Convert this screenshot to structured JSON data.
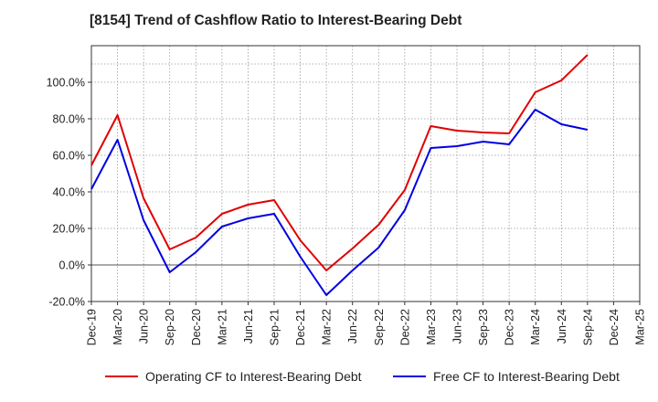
{
  "chart_data": {
    "type": "line",
    "title": "[8154]  Trend of Cashflow Ratio to Interest-Bearing Debt",
    "xlabel": "",
    "ylabel": "",
    "x": [
      "Dec-19",
      "Mar-20",
      "Jun-20",
      "Sep-20",
      "Dec-20",
      "Mar-21",
      "Jun-21",
      "Sep-21",
      "Dec-21",
      "Mar-22",
      "Jun-22",
      "Sep-22",
      "Dec-22",
      "Mar-23",
      "Jun-23",
      "Sep-23",
      "Dec-23",
      "Mar-24",
      "Jun-24",
      "Sep-24",
      "Dec-24",
      "Mar-25"
    ],
    "ylim": [
      -20,
      120
    ],
    "yticks": [
      -20,
      0,
      20,
      40,
      60,
      80,
      100
    ],
    "ytick_labels": [
      "-20.0%",
      "0.0%",
      "20.0%",
      "40.0%",
      "60.0%",
      "80.0%",
      "100.0%"
    ],
    "grid": true,
    "legend_position": "bottom",
    "series": [
      {
        "name": "Operating CF to Interest-Bearing Debt",
        "color": "#e00000",
        "values": [
          54.5,
          82.0,
          36.5,
          8.5,
          15.0,
          28.0,
          33.0,
          35.5,
          13.5,
          -3.0,
          9.0,
          22.0,
          41.0,
          76.0,
          73.5,
          72.5,
          72.0,
          94.5,
          101.0,
          115.0,
          null,
          null
        ]
      },
      {
        "name": "Free CF to Interest-Bearing Debt",
        "color": "#0000e0",
        "values": [
          41.5,
          68.5,
          24.5,
          -4.0,
          7.0,
          21.0,
          25.5,
          28.0,
          4.5,
          -16.5,
          -3.0,
          9.5,
          30.0,
          64.0,
          65.0,
          67.5,
          66.0,
          85.0,
          77.0,
          74.0,
          null,
          null
        ]
      }
    ]
  }
}
